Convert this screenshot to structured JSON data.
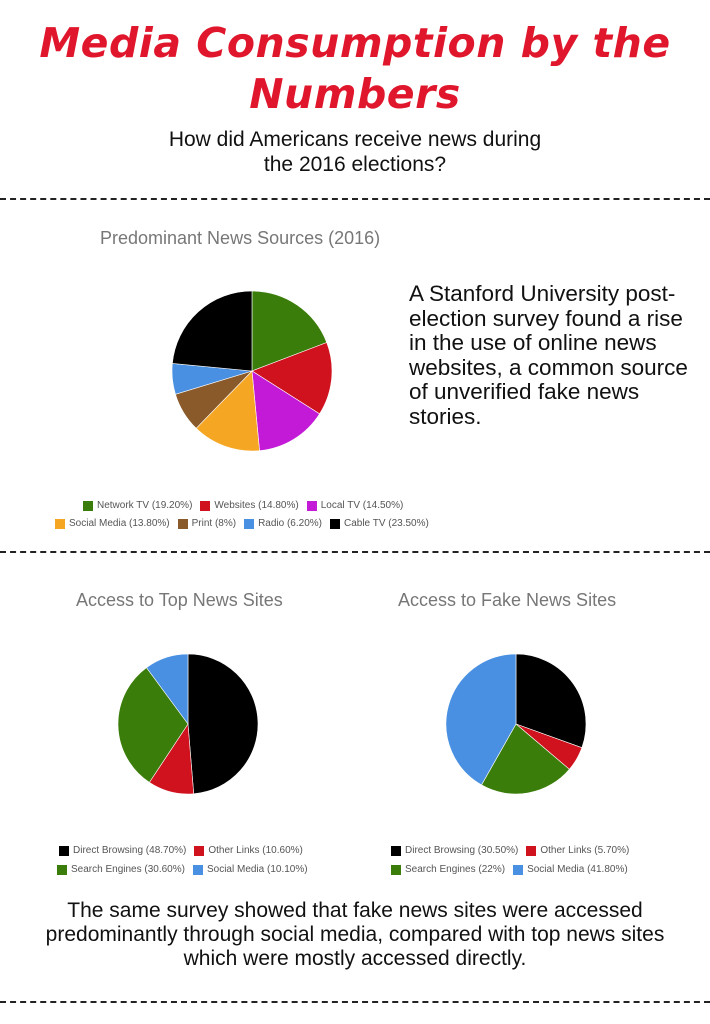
{
  "title": {
    "line1": "Media Consumption by the",
    "line2": "Numbers"
  },
  "subtitle": {
    "line1": "How did Americans receive news during",
    "line2": "the 2016 elections?"
  },
  "side_text": "A Stanford University post-election survey found a rise in the use of online news websites, a common source of unverified fake news stories.",
  "bottom_text": "The same survey showed that fake news sites were accessed predominantly through social media, compared with top news sites which were mostly accessed directly.",
  "colors": {
    "title": "#e0172c",
    "network_tv": "#3a7d0a",
    "websites": "#d0121f",
    "local_tv": "#c21ad6",
    "social_media_orange": "#f5a623",
    "print": "#8a5a2b",
    "radio": "#4a90e2",
    "black": "#000000"
  },
  "chart_data": [
    {
      "type": "pie",
      "title": "Predominant News Sources (2016)",
      "labels": [
        "Network TV (19.20%)",
        "Websites (14.80%)",
        "Local TV (14.50%)",
        "Social Media (13.80%)",
        "Print (8%)",
        "Radio (6.20%)",
        "Cable TV (23.50%)"
      ],
      "categories": [
        "Network TV",
        "Websites",
        "Local TV",
        "Social Media",
        "Print",
        "Radio",
        "Cable TV"
      ],
      "values": [
        19.2,
        14.8,
        14.5,
        13.8,
        8,
        6.2,
        23.5
      ],
      "colors": [
        "#3a7d0a",
        "#d0121f",
        "#c21ad6",
        "#f5a623",
        "#8a5a2b",
        "#4a90e2",
        "#000000"
      ],
      "legend": "bottom"
    },
    {
      "type": "pie",
      "title": "Access to Top News Sites",
      "labels": [
        "Direct Browsing (48.70%)",
        "Other Links (10.60%)",
        "Search Engines (30.60%)",
        "Social Media (10.10%)"
      ],
      "categories": [
        "Direct Browsing",
        "Other Links",
        "Search Engines",
        "Social Media"
      ],
      "values": [
        48.7,
        10.6,
        30.6,
        10.1
      ],
      "colors": [
        "#000000",
        "#d0121f",
        "#3a7d0a",
        "#4a90e2"
      ],
      "legend": "bottom"
    },
    {
      "type": "pie",
      "title": "Access to Fake News Sites",
      "labels": [
        "Direct Browsing (30.50%)",
        "Other Links (5.70%)",
        "Search Engines (22%)",
        "Social Media (41.80%)"
      ],
      "categories": [
        "Direct Browsing",
        "Other Links",
        "Search Engines",
        "Social Media"
      ],
      "values": [
        30.5,
        5.7,
        22,
        41.8
      ],
      "colors": [
        "#000000",
        "#d0121f",
        "#3a7d0a",
        "#4a90e2"
      ],
      "legend": "bottom"
    }
  ]
}
